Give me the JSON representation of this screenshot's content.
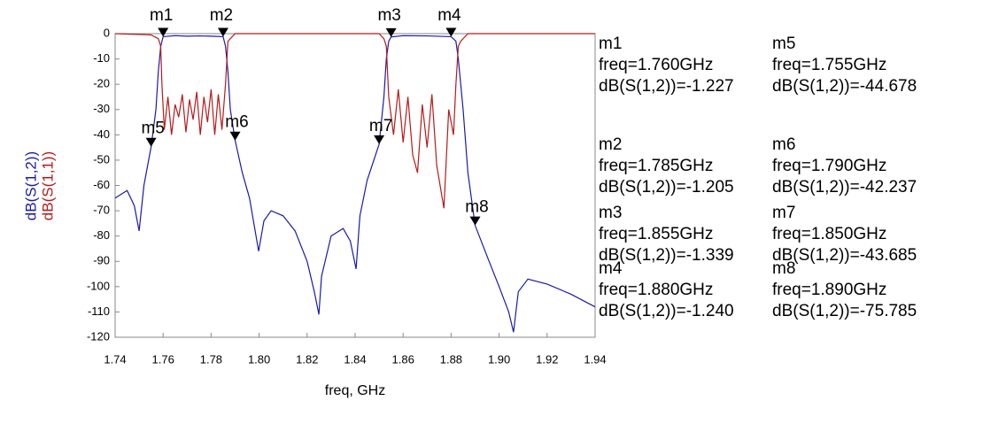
{
  "chart_data": {
    "type": "line",
    "xlabel": "freq, GHz",
    "xlim": [
      1.74,
      1.94
    ],
    "xticks": [
      1.74,
      1.76,
      1.78,
      {
        "value": 1.8,
        "label": "1.80"
      },
      1.82,
      1.84,
      1.86,
      1.88,
      {
        "value": 1.9,
        "label": "1.90"
      },
      1.92,
      1.94
    ],
    "ylim": [
      -120,
      0
    ],
    "yticks": [
      0,
      -10,
      -20,
      -30,
      -40,
      -50,
      -60,
      -70,
      -80,
      -90,
      -100,
      -110,
      -120
    ],
    "series": [
      {
        "name": "dB(S(1,2))",
        "color": "#1a1aa6",
        "x": [
          1.74,
          1.745,
          1.748,
          1.75,
          1.752,
          1.755,
          1.757,
          1.758,
          1.759,
          1.76,
          1.765,
          1.77,
          1.775,
          1.78,
          1.785,
          1.786,
          1.787,
          1.788,
          1.79,
          1.793,
          1.796,
          1.7998,
          1.802,
          1.805,
          1.81,
          1.815,
          1.82,
          1.823,
          1.8249,
          1.826,
          1.83,
          1.835,
          1.838,
          1.8404,
          1.842,
          1.845,
          1.85,
          1.852,
          1.853,
          1.854,
          1.855,
          1.86,
          1.87,
          1.88,
          1.882,
          1.883,
          1.885,
          1.887,
          1.89,
          1.895,
          1.9,
          1.904,
          1.906,
          1.908,
          1.912,
          1.92,
          1.93,
          1.94
        ],
        "values": [
          -65,
          -62,
          -68,
          -78,
          -60,
          -44.7,
          -30,
          -15,
          -5,
          -1.2,
          -0.8,
          -1,
          -0.9,
          -1,
          -1.2,
          -5,
          -15,
          -30,
          -42.2,
          -55,
          -65,
          -86,
          -74,
          -70,
          -72,
          -78,
          -90,
          -102,
          -111,
          -96,
          -80,
          -77,
          -82,
          -93,
          -72,
          -58,
          -43.7,
          -25,
          -10,
          -3,
          -1.3,
          -0.8,
          -0.9,
          -1.2,
          -3,
          -10,
          -30,
          -55,
          -75.8,
          -88,
          -100,
          -110,
          -118,
          -102,
          -97,
          -99,
          -103,
          -108
        ]
      },
      {
        "name": "dB(S(1,1))",
        "color": "#b51a1a",
        "x": [
          1.74,
          1.755,
          1.758,
          1.759,
          1.7595,
          1.7605,
          1.762,
          1.7635,
          1.765,
          1.7665,
          1.768,
          1.7695,
          1.771,
          1.7725,
          1.774,
          1.7755,
          1.777,
          1.7785,
          1.78,
          1.7815,
          1.783,
          1.7845,
          1.786,
          1.787,
          1.79,
          1.85,
          1.852,
          1.853,
          1.854,
          1.856,
          1.858,
          1.86,
          1.862,
          1.864,
          1.866,
          1.868,
          1.87,
          1.872,
          1.874,
          1.877,
          1.879,
          1.881,
          1.882,
          1.883,
          1.884,
          1.887,
          1.94
        ],
        "values": [
          0,
          -0.5,
          -2,
          -5,
          -20,
          -38,
          -25,
          -40,
          -28,
          -33,
          -24,
          -39,
          -26,
          -34,
          -23,
          -40,
          -25,
          -35,
          -22,
          -40,
          -24,
          -38,
          -20,
          -3,
          0,
          0,
          -2,
          -5,
          -25,
          -40,
          -22,
          -43,
          -25,
          -48,
          -55,
          -28,
          -45,
          -24,
          -52,
          -69,
          -30,
          -40,
          -20,
          -5,
          -3,
          0,
          0
        ]
      }
    ],
    "markers": [
      {
        "name": "m1",
        "x": 1.76,
        "y": -1.227,
        "x_label": "freq=1.760GHz",
        "y_label": "dB(S(1,2))=-1.227"
      },
      {
        "name": "m2",
        "x": 1.785,
        "y": -1.205,
        "x_label": "freq=1.785GHz",
        "y_label": "dB(S(1,2))=-1.205"
      },
      {
        "name": "m3",
        "x": 1.855,
        "y": -1.339,
        "x_label": "freq=1.855GHz",
        "y_label": "dB(S(1,2))=-1.339"
      },
      {
        "name": "m4",
        "x": 1.88,
        "y": -1.24,
        "x_label": "freq=1.880GHz",
        "y_label": "dB(S(1,2))=-1.240"
      },
      {
        "name": "m5",
        "x": 1.755,
        "y": -44.678,
        "x_label": "freq=1.755GHz",
        "y_label": "dB(S(1,2))=-44.678"
      },
      {
        "name": "m6",
        "x": 1.79,
        "y": -42.237,
        "x_label": "freq=1.790GHz",
        "y_label": "dB(S(1,2))=-42.237"
      },
      {
        "name": "m7",
        "x": 1.85,
        "y": -43.685,
        "x_label": "freq=1.850GHz",
        "y_label": "dB(S(1,2))=-43.685"
      },
      {
        "name": "m8",
        "x": 1.89,
        "y": -75.785,
        "x_label": "freq=1.890GHz",
        "y_label": "dB(S(1,2))=-75.785"
      }
    ]
  }
}
